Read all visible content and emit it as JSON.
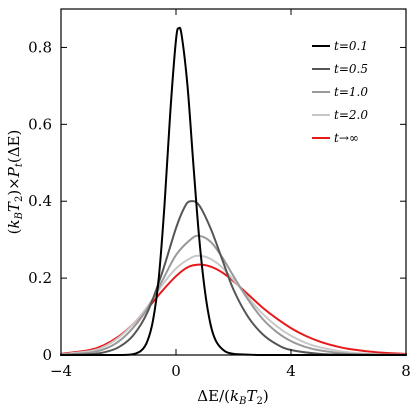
{
  "chart_data": {
    "type": "line",
    "title": "",
    "xlabel": "ΔE/(k_BT_2)",
    "xlabel_parts": [
      "ΔE/(",
      "k",
      "B",
      "T",
      "2",
      ")"
    ],
    "ylabel": "(k_BT_2)×P_t(ΔE)",
    "ylabel_parts": [
      "(",
      "k",
      "B",
      "T",
      "2",
      ")×",
      "P",
      "t",
      "(ΔE)"
    ],
    "xlim": [
      -4,
      8
    ],
    "ylim": [
      0,
      0.9
    ],
    "x_ticks": [
      -4,
      0,
      4,
      8
    ],
    "x_tick_labels": [
      "−4",
      "0",
      "4",
      "8"
    ],
    "y_ticks": [
      0,
      0.2,
      0.4,
      0.6,
      0.8
    ],
    "y_tick_labels": [
      "0",
      "0.2",
      "0.4",
      "0.6",
      "0.8"
    ],
    "grid": false,
    "legend_position": "top-right",
    "series": [
      {
        "name": "t=0.1",
        "color": "#000000",
        "x": [
          -4,
          -2,
          -1.5,
          -1.2,
          -1.0,
          -0.8,
          -0.6,
          -0.4,
          -0.2,
          0,
          0.1,
          0.2,
          0.4,
          0.6,
          0.8,
          1.0,
          1.2,
          1.4,
          1.7,
          2.0,
          2.5,
          3,
          4,
          6,
          8
        ],
        "y": [
          0,
          0,
          0.002,
          0.012,
          0.035,
          0.09,
          0.2,
          0.39,
          0.63,
          0.82,
          0.85,
          0.83,
          0.7,
          0.5,
          0.31,
          0.17,
          0.08,
          0.035,
          0.01,
          0.003,
          0.001,
          0,
          0,
          0,
          0
        ]
      },
      {
        "name": "t=0.5",
        "color": "#555555",
        "x": [
          -4,
          -3,
          -2.5,
          -2,
          -1.5,
          -1,
          -0.5,
          0,
          0.3,
          0.5,
          0.8,
          1.2,
          1.6,
          2,
          2.5,
          3,
          3.5,
          4,
          5,
          6,
          8
        ],
        "y": [
          0,
          0.002,
          0.007,
          0.02,
          0.05,
          0.11,
          0.21,
          0.33,
          0.385,
          0.4,
          0.39,
          0.33,
          0.25,
          0.17,
          0.1,
          0.055,
          0.028,
          0.013,
          0.003,
          0.001,
          0
        ]
      },
      {
        "name": "t=1.0",
        "color": "#999999",
        "x": [
          -4,
          -3,
          -2.5,
          -2,
          -1.5,
          -1,
          -0.5,
          0,
          0.5,
          0.8,
          1.2,
          1.6,
          2,
          2.5,
          3,
          3.5,
          4,
          4.5,
          5,
          6,
          7,
          8
        ],
        "y": [
          0.001,
          0.006,
          0.015,
          0.035,
          0.07,
          0.12,
          0.19,
          0.26,
          0.3,
          0.31,
          0.295,
          0.255,
          0.205,
          0.145,
          0.095,
          0.06,
          0.036,
          0.021,
          0.012,
          0.003,
          0.001,
          0
        ]
      },
      {
        "name": "t=2.0",
        "color": "#c8c8c8",
        "x": [
          -4,
          -3,
          -2.5,
          -2,
          -1.5,
          -1,
          -0.5,
          0,
          0.5,
          0.8,
          1.2,
          1.6,
          2,
          2.5,
          3,
          3.5,
          4,
          4.5,
          5,
          6,
          7,
          8
        ],
        "y": [
          0.002,
          0.01,
          0.022,
          0.045,
          0.08,
          0.125,
          0.18,
          0.225,
          0.252,
          0.258,
          0.25,
          0.228,
          0.195,
          0.15,
          0.108,
          0.075,
          0.05,
          0.032,
          0.02,
          0.007,
          0.002,
          0.001
        ]
      },
      {
        "name": "t→∞",
        "color": "#e8191b",
        "x": [
          -4,
          -3,
          -2.5,
          -2,
          -1.5,
          -1,
          -0.5,
          0,
          0.4,
          0.8,
          1.2,
          1.6,
          2,
          2.5,
          3,
          3.5,
          4,
          4.5,
          5,
          5.5,
          6,
          7,
          8
        ],
        "y": [
          0.003,
          0.013,
          0.026,
          0.048,
          0.08,
          0.12,
          0.165,
          0.205,
          0.228,
          0.235,
          0.23,
          0.215,
          0.192,
          0.158,
          0.124,
          0.095,
          0.07,
          0.05,
          0.035,
          0.024,
          0.016,
          0.007,
          0.003
        ]
      }
    ]
  }
}
